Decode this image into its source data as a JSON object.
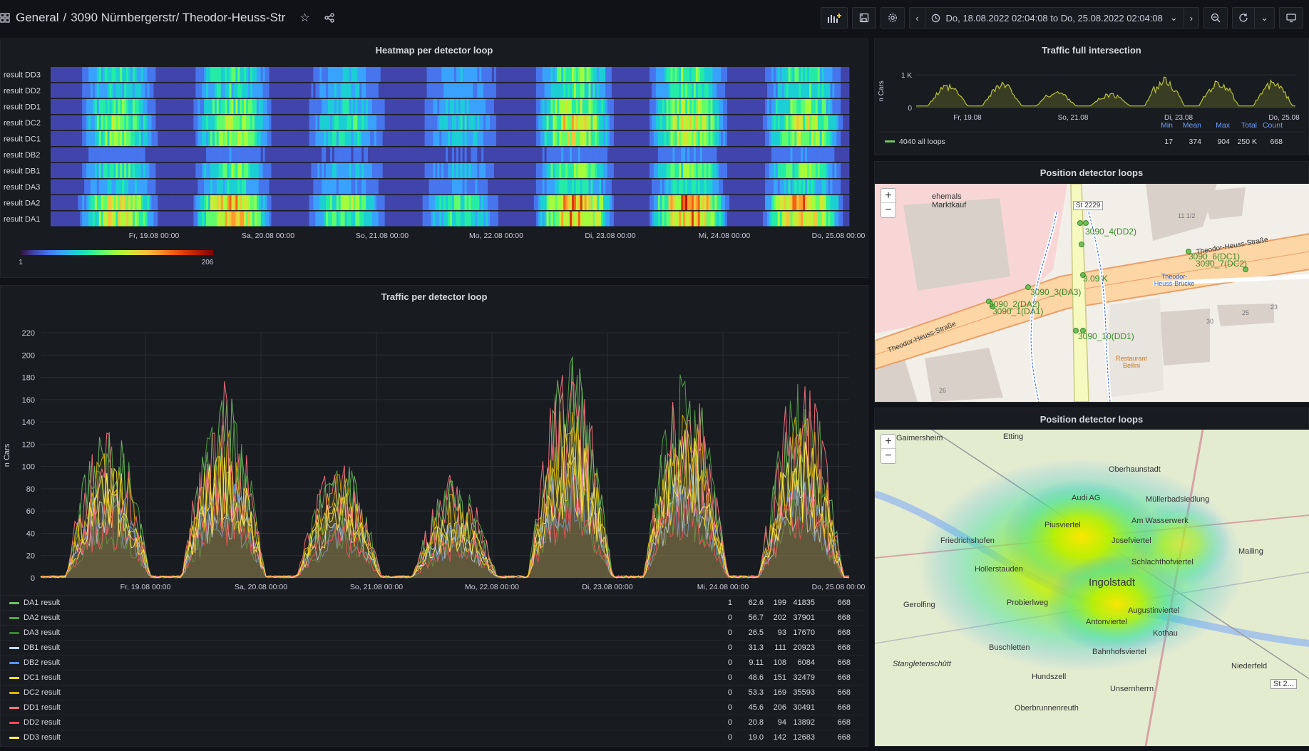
{
  "header": {
    "crumb_root": "General",
    "crumb_sep": "/",
    "crumb_title": "3090 Nürnbergerstr/ Theodor-Heuss-Str",
    "time_range": "Do, 18.08.2022 02:04:08 to Do, 25.08.2022 02:04:08"
  },
  "heatmap": {
    "title": "Heatmap per detector loop",
    "rows": [
      "result DD3",
      "result DD2",
      "result DD1",
      "result DC2",
      "result DC1",
      "result DB2",
      "result DB1",
      "result DA3",
      "result DA2",
      "result DA1"
    ],
    "xticks": [
      "Fr, 19.08 00:00",
      "Sa, 20.08 00:00",
      "So, 21.08 00:00",
      "Mo, 22.08 00:00",
      "Di, 23.08 00:00",
      "Mi, 24.08 00:00",
      "Do, 25.08 00:00"
    ],
    "scale_min": "1",
    "scale_max": "206"
  },
  "traffic_full": {
    "title": "Traffic full intersection",
    "ylabel": "n Cars",
    "yticks": [
      "1 K",
      "0"
    ],
    "xticks": [
      "Fr, 19.08",
      "So, 21.08",
      "Di, 23.08",
      "Do, 25.08"
    ],
    "legend_headers": [
      "Min",
      "Mean",
      "Max",
      "Total",
      "Count"
    ],
    "legend_row": {
      "name": "4040 all loops",
      "values": [
        "17",
        "374",
        "904",
        "250 K",
        "668"
      ]
    },
    "color": "#73bf69"
  },
  "traffic_loop": {
    "title": "Traffic per detector loop",
    "ylabel": "n Cars",
    "yticks": [
      "220",
      "200",
      "180",
      "160",
      "140",
      "120",
      "100",
      "80",
      "60",
      "40",
      "20",
      "0"
    ],
    "xticks": [
      "Fr, 19.08 00:00",
      "Sa, 20.08 00:00",
      "So, 21.08 00:00",
      "Mo, 22.08 00:00",
      "Di, 23.08 00:00",
      "Mi, 24.08 00:00",
      "Do, 25.08 00:00"
    ],
    "legend": [
      {
        "name": "DA1 result",
        "color": "#73bf69",
        "values": [
          "1",
          "62.6",
          "199",
          "41835",
          "668"
        ]
      },
      {
        "name": "DA2 result",
        "color": "#56a64b",
        "values": [
          "0",
          "56.7",
          "202",
          "37901",
          "668"
        ]
      },
      {
        "name": "DA3 result",
        "color": "#37872d",
        "values": [
          "0",
          "26.5",
          "93",
          "17670",
          "668"
        ]
      },
      {
        "name": "DB1 result",
        "color": "#c0d8ff",
        "values": [
          "0",
          "31.3",
          "111",
          "20923",
          "668"
        ]
      },
      {
        "name": "DB2 result",
        "color": "#5794f2",
        "values": [
          "0",
          "9.11",
          "108",
          "6084",
          "668"
        ]
      },
      {
        "name": "DC1 result",
        "color": "#fade2a",
        "values": [
          "0",
          "48.6",
          "151",
          "32479",
          "668"
        ]
      },
      {
        "name": "DC2 result",
        "color": "#e0b400",
        "values": [
          "0",
          "53.3",
          "169",
          "35593",
          "668"
        ]
      },
      {
        "name": "DD1 result",
        "color": "#ff7383",
        "values": [
          "0",
          "45.6",
          "206",
          "30491",
          "668"
        ]
      },
      {
        "name": "DD2 result",
        "color": "#f2495c",
        "values": [
          "0",
          "20.8",
          "94",
          "13892",
          "668"
        ]
      },
      {
        "name": "DD3 result",
        "color": "#ffee52",
        "values": [
          "0",
          "19.0",
          "142",
          "12683",
          "668"
        ]
      }
    ]
  },
  "map1": {
    "title": "Position detector loops",
    "labels": {
      "ehemals": "ehemals",
      "marktkauf": "Marktkauf",
      "st2229": "St 2229",
      "dd3": "3090_4(DD2)",
      "thstr1": "Theodor-Heuss-Straße",
      "thstr2": "Theodor-Heuss-Straße",
      "val": "3.09 K",
      "da3": "3090_3(DA3)",
      "da2": "3090_2(DA2)",
      "da1": "3090_1(DA1)",
      "dd1": "3090_10(DD1)",
      "dc2": "3090_7(DC2)",
      "dc1": "3090_6(DC1)",
      "bruecke": "Theodor-Heuss-Brücke",
      "restaurant": "Restaurant Bellini",
      "n30": "30",
      "n25": "25",
      "n23": "23",
      "n26": "26",
      "n11": "11 1/2"
    }
  },
  "map2": {
    "title": "Position detector loops",
    "places": [
      "Gaimersheim",
      "Etting",
      "Oberhaunstadt",
      "Audi AG",
      "Mailing",
      "Müllerbadsiedlung",
      "Friedrichshofen",
      "Piusviertel",
      "Am Wasserwerk",
      "Josefviertel",
      "Hollerstauden",
      "Schlachthofviertel",
      "Ingolstadt",
      "Gerolfing",
      "Probierlweg",
      "Augustinviertel",
      "Antonviertel",
      "Kothau",
      "Buschletten",
      "Bahnhofsviertel",
      "Stangletenschütt",
      "Niederfeld",
      "Hundszell",
      "Unsernherrn",
      "Oberbrunnenreuth",
      "St 2..."
    ]
  }
}
